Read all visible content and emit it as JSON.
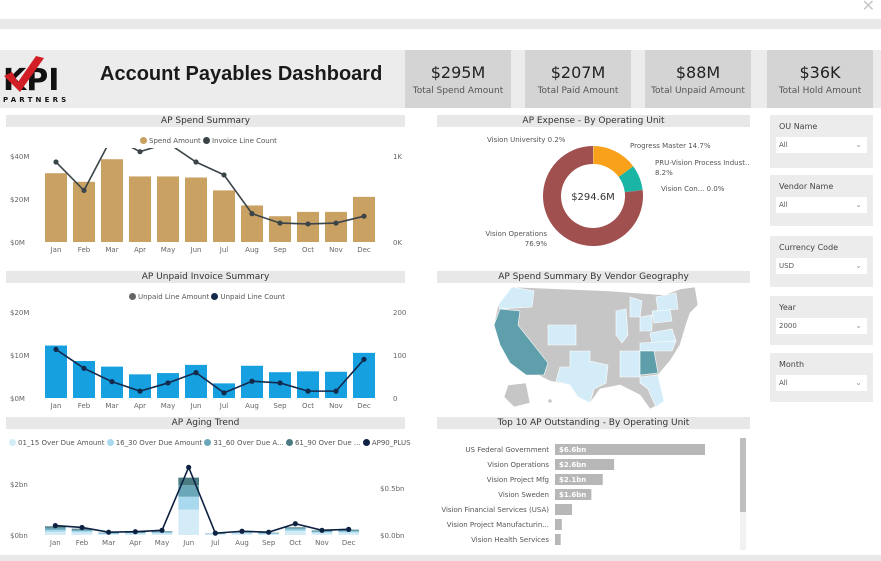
{
  "window": {
    "close_icon": "✕"
  },
  "header": {
    "title": "Account Payables Dashboard",
    "logo": {
      "text_main": "KPI",
      "text_sub": "PARTNERS"
    }
  },
  "kpis": [
    {
      "value": "$295M",
      "label": "Total Spend Amount"
    },
    {
      "value": "$207M",
      "label": "Total Paid Amount"
    },
    {
      "value": "$88M",
      "label": "Total Unpaid Amount"
    },
    {
      "value": "$36K",
      "label": "Total Hold Amount"
    }
  ],
  "slicers": [
    {
      "label": "OU Name",
      "value": "All"
    },
    {
      "label": "Vendor Name",
      "value": "All"
    },
    {
      "label": "Currency Code",
      "value": "USD"
    },
    {
      "label": "Year",
      "value": "2000"
    },
    {
      "label": "Month",
      "value": "All"
    }
  ],
  "panels": {
    "spend": {
      "title": "AP Spend Summary"
    },
    "unpaid": {
      "title": "AP Unpaid Invoice Summary"
    },
    "aging": {
      "title": "AP Aging Trend"
    },
    "expense": {
      "title": "AP Expense - By Operating Unit"
    },
    "geo": {
      "title": "AP Spend Summary By Vendor Geography"
    },
    "top10": {
      "title": "Top 10 AP Outstanding - By Operating Unit"
    }
  },
  "colors": {
    "spend_bar": "#c8a163",
    "spend_line": "#3a4449",
    "unpaid_bar": "#16a0e0",
    "unpaid_line": "#13294b"
  },
  "chart_data": [
    {
      "type": "bar",
      "title": "AP Spend Summary",
      "categories": [
        "Jan",
        "Feb",
        "Mar",
        "Apr",
        "May",
        "Jun",
        "Jul",
        "Aug",
        "Sep",
        "Oct",
        "Nov",
        "Dec"
      ],
      "series": [
        {
          "name": "Spend Amount",
          "axis": "left",
          "kind": "bar",
          "values": [
            32,
            28,
            38.5,
            30.5,
            30.5,
            30,
            24,
            17,
            12,
            14,
            14,
            21
          ]
        },
        {
          "name": "Invoice Line Count",
          "axis": "right",
          "kind": "line",
          "values": [
            930,
            600,
            1220,
            1050,
            1150,
            930,
            780,
            330,
            220,
            210,
            220,
            300
          ]
        }
      ],
      "y_left": {
        "ticks": [
          "$0M",
          "$20M",
          "$40M"
        ],
        "range": [
          0,
          40
        ],
        "unit": "$M"
      },
      "y_right": {
        "ticks": [
          "0K",
          "1K"
        ],
        "range": [
          0,
          1000
        ]
      },
      "legend": "top"
    },
    {
      "type": "bar",
      "title": "AP Unpaid Invoice Summary",
      "categories": [
        "Jan",
        "Feb",
        "Mar",
        "Apr",
        "May",
        "Jun",
        "Jul",
        "Aug",
        "Sep",
        "Oct",
        "Nov",
        "Dec"
      ],
      "series": [
        {
          "name": "Unpaid Line Amount",
          "axis": "left",
          "kind": "bar",
          "values": [
            12.2,
            8.6,
            7.3,
            5.5,
            5.8,
            7.7,
            3.4,
            7.5,
            6,
            6.2,
            6.1,
            10.5
          ]
        },
        {
          "name": "Unpaid Line Count",
          "axis": "right",
          "kind": "line",
          "values": [
            113,
            69,
            38,
            16,
            35,
            59,
            12,
            39,
            35,
            16,
            16,
            90
          ]
        }
      ],
      "y_left": {
        "ticks": [
          "$0M",
          "$10M",
          "$20M"
        ],
        "range": [
          0,
          20
        ],
        "unit": "$M"
      },
      "y_right": {
        "ticks": [
          "0",
          "100",
          "200"
        ],
        "range": [
          0,
          200
        ]
      },
      "legend": "top"
    },
    {
      "type": "bar",
      "title": "AP Aging Trend",
      "stacked": true,
      "categories": [
        "Jan",
        "Feb",
        "Mar",
        "Apr",
        "May",
        "Jun",
        "Jul",
        "Aug",
        "Sep",
        "Oct",
        "Nov",
        "Dec"
      ],
      "series": [
        {
          "name": "01_15 Over Due Amount",
          "color": "#d3ecf7",
          "values": [
            0.12,
            0.1,
            0.04,
            0.05,
            0.06,
            1.0,
            0.03,
            0.06,
            0.04,
            0.15,
            0.08,
            0.09
          ]
        },
        {
          "name": "16_30 Over Due Amount",
          "color": "#a8d9ef",
          "values": [
            0.08,
            0.06,
            0.02,
            0.03,
            0.04,
            0.5,
            0.01,
            0.03,
            0.02,
            0.07,
            0.04,
            0.05
          ]
        },
        {
          "name": "31_60 Over Due A...",
          "color": "#6aa8b9",
          "values": [
            0.08,
            0.05,
            0.02,
            0.02,
            0.03,
            0.45,
            0.01,
            0.02,
            0.02,
            0.05,
            0.04,
            0.04
          ]
        },
        {
          "name": "61_90 Over Due ...",
          "color": "#4a7a82",
          "values": [
            0.06,
            0.04,
            0.01,
            0.02,
            0.02,
            0.3,
            0.01,
            0.02,
            0.01,
            0.03,
            0.02,
            0.03
          ]
        },
        {
          "name": "AP90_PLUS",
          "kind": "line",
          "axis": "right",
          "color": "#0d2142",
          "values": [
            0.1,
            0.08,
            0.03,
            0.035,
            0.05,
            0.72,
            0.02,
            0.04,
            0.03,
            0.12,
            0.05,
            0.06
          ]
        }
      ],
      "y_left": {
        "ticks": [
          "$0bn",
          "$2bn"
        ],
        "range": [
          0,
          2
        ]
      },
      "y_right": {
        "ticks": [
          "$0.0bn",
          "$0.5bn"
        ],
        "range": [
          0,
          0.5
        ]
      },
      "legend": "top"
    },
    {
      "type": "pie",
      "title": "AP Expense - By Operating Unit",
      "center_label": "$294.6M",
      "slices": [
        {
          "label": "Vision University",
          "pct_label": "0.2%",
          "value": 0.2,
          "color": "#e8c98e"
        },
        {
          "label": "Progress Master",
          "pct_label": "14.7%",
          "value": 14.7,
          "color": "#f9a11b"
        },
        {
          "label": "PRU-Vision Process Indust...",
          "pct_label": "8.2%",
          "value": 8.2,
          "color": "#1ab5a4"
        },
        {
          "label": "Vision Con...",
          "pct_label": "0.0%",
          "value": 0.05,
          "color": "#555555"
        },
        {
          "label": "Vision Operations",
          "pct_label": "76.9%",
          "value": 76.9,
          "color": "#a0504f"
        }
      ]
    },
    {
      "type": "bar",
      "orientation": "horizontal",
      "title": "Top 10 AP Outstanding - By Operating Unit",
      "categories": [
        "US Federal Government",
        "Vision Operations",
        "Vision Project Mfg",
        "Vision Sweden",
        "Vision Financial Services (USA)",
        "Vision Project Manufacturin...",
        "Vision Health Services"
      ],
      "values": [
        6.6,
        2.6,
        2.1,
        1.6,
        0.75,
        0.3,
        0.25
      ],
      "data_labels": [
        "$6.6bn",
        "$2.6bn",
        "$2.1bn",
        "$1.6bn",
        "",
        "",
        ""
      ],
      "unit": "$bn"
    }
  ],
  "geo": {
    "legend": "shade intensity = spend",
    "dark_states": [
      "California",
      "Georgia"
    ],
    "light_states": [
      "Oregon",
      "Colorado",
      "Texas",
      "Illinois",
      "Michigan",
      "Ohio",
      "Pennsylvania",
      "New York",
      "Virginia",
      "North Carolina",
      "South Carolina",
      "Tennessee",
      "Mississippi",
      "Alabama",
      "Florida",
      "Massachusetts",
      "New Jersey"
    ]
  }
}
